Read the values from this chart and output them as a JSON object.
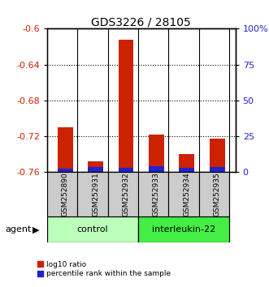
{
  "title": "GDS3226 / 28105",
  "samples": [
    "GSM252890",
    "GSM252931",
    "GSM252932",
    "GSM252933",
    "GSM252934",
    "GSM252935"
  ],
  "log10_ratio": [
    -0.71,
    -0.748,
    -0.612,
    -0.718,
    -0.74,
    -0.723
  ],
  "percentile_rank": [
    2.5,
    3.5,
    3.0,
    4.0,
    3.0,
    3.5
  ],
  "group_control_color": "#bbffbb",
  "group_il22_color": "#44ee44",
  "ylim_left": [
    -0.76,
    -0.6
  ],
  "yticks_left": [
    -0.76,
    -0.72,
    -0.68,
    -0.64,
    -0.6
  ],
  "ytick_labels_left": [
    "-0.76",
    "-0.72",
    "-0.68",
    "-0.64",
    "-0.6"
  ],
  "yticks_right": [
    0,
    25,
    50,
    75,
    100
  ],
  "ytick_labels_right": [
    "0",
    "25",
    "50",
    "75",
    "100%"
  ],
  "bar_color_red": "#cc2200",
  "bar_color_blue": "#2222cc",
  "background_color": "#ffffff",
  "sample_box_color": "#cccccc",
  "agent_label": "agent",
  "legend_red": "log10 ratio",
  "legend_blue": "percentile rank within the sample",
  "bar_width": 0.5,
  "control_label": "control",
  "il22_label": "interleukin-22"
}
